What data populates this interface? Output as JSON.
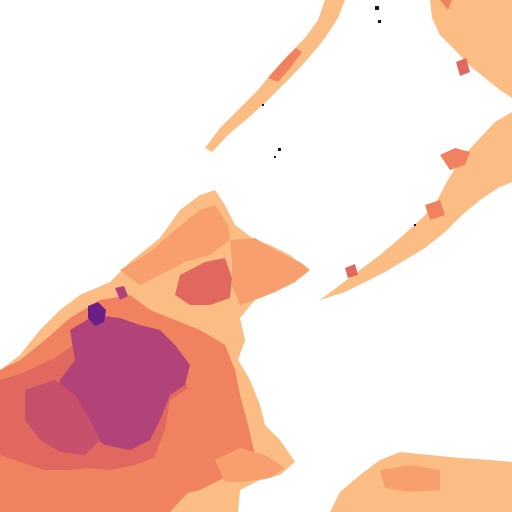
{
  "map": {
    "background_color": "#ffffff",
    "palette": {
      "very_light": "#fcd6a0",
      "light": "#fbbd84",
      "light_mid": "#f7a06e",
      "mid": "#f08260",
      "mid_dark": "#e1685e",
      "dark": "#c9506a",
      "darker": "#b14378",
      "darkest": "#6a1e86",
      "ink": "#1a0f3c"
    }
  }
}
